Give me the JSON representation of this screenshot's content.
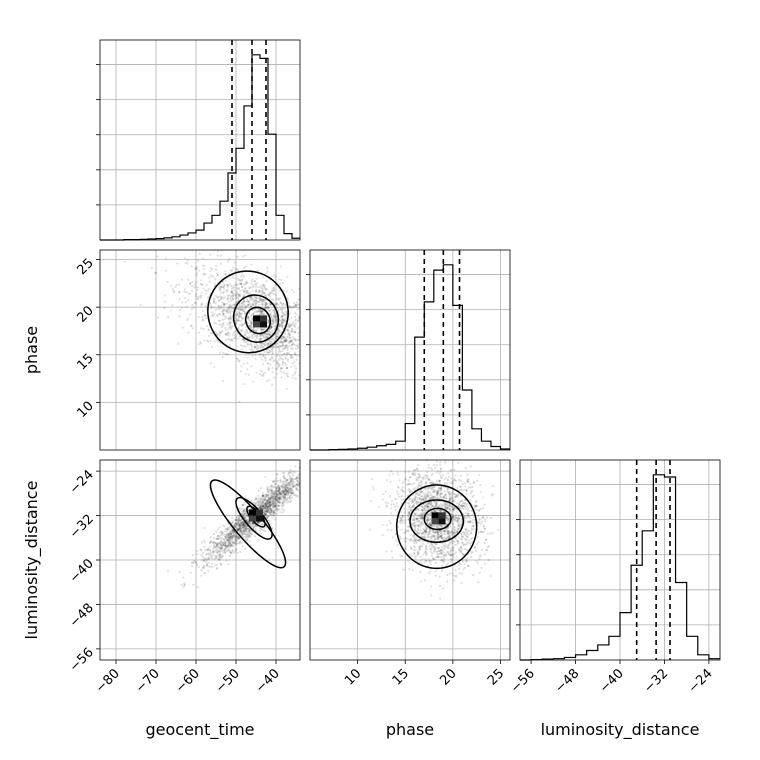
{
  "chart_data": {
    "type": "corner",
    "parameters": [
      "geocent_time",
      "phase",
      "luminosity_distance"
    ],
    "axis_labels": {
      "x": [
        "geocent_time",
        "phase",
        "luminosity_distance"
      ],
      "y": [
        "phase",
        "luminosity_distance"
      ]
    },
    "ranges": {
      "geocent_time": [
        -84,
        -34
      ],
      "phase": [
        5,
        26
      ],
      "luminosity_distance": [
        -58,
        -22
      ]
    },
    "ticks": {
      "geocent_time": [
        -80,
        -70,
        -60,
        -50,
        -40
      ],
      "phase": [
        10,
        15,
        20,
        25
      ],
      "phase_y": [
        10,
        15,
        20,
        25
      ],
      "luminosity_distance": [
        -56,
        -48,
        -40,
        -32,
        -24
      ]
    },
    "tick_labels": {
      "geocent_time": [
        "−80",
        "−70",
        "−60",
        "−50",
        "−40"
      ],
      "phase": [
        "10",
        "15",
        "20",
        "25"
      ],
      "luminosity_distance": [
        "−56",
        "−48",
        "−40",
        "−32",
        "−24"
      ]
    },
    "quantiles": {
      "geocent_time": [
        -51,
        -46,
        -42.5
      ],
      "phase": [
        17,
        19,
        20.7
      ],
      "luminosity_distance": [
        -37,
        -33.5,
        -31
      ]
    },
    "histograms": {
      "geocent_time": {
        "bins": [
          -84,
          -82,
          -80,
          -78,
          -76,
          -74,
          -72,
          -70,
          -68,
          -66,
          -64,
          -62,
          -60,
          -58,
          -56,
          -54,
          -52,
          -50,
          -48,
          -46,
          -44,
          -42,
          -40,
          -38,
          -36,
          -34
        ],
        "counts": [
          0,
          0,
          0,
          1,
          1,
          2,
          3,
          4,
          6,
          9,
          14,
          20,
          28,
          48,
          70,
          110,
          190,
          260,
          380,
          525,
          515,
          300,
          70,
          18,
          5
        ]
      },
      "phase": {
        "bins": [
          5,
          6,
          7,
          8,
          9,
          10,
          11,
          12,
          13,
          14,
          15,
          16,
          17,
          18,
          19,
          20,
          21,
          22,
          23,
          24,
          25,
          26
        ],
        "counts": [
          0,
          0,
          1,
          2,
          3,
          5,
          8,
          12,
          16,
          25,
          75,
          320,
          420,
          510,
          525,
          410,
          170,
          60,
          25,
          10,
          3
        ]
      },
      "luminosity_distance": {
        "bins": [
          -58,
          -56,
          -54,
          -52,
          -50,
          -48,
          -46,
          -44,
          -42,
          -40,
          -38,
          -36,
          -34,
          -32,
          -30,
          -28,
          -26,
          -24,
          -22
        ],
        "counts": [
          0,
          1,
          2,
          3,
          6,
          12,
          22,
          35,
          55,
          110,
          220,
          300,
          430,
          425,
          180,
          55,
          12,
          3
        ]
      }
    },
    "scatter_2d": [
      {
        "x": "geocent_time",
        "y": "phase",
        "center": [
          -44,
          18.5
        ],
        "contour_levels": [
          {
            "cx": -47,
            "cy": 19.5,
            "rx": 10,
            "ry": 4.3,
            "rot": -25
          },
          {
            "cx": -45,
            "cy": 18.8,
            "rx": 5.5,
            "ry": 2.5,
            "rot": -25
          },
          {
            "cx": -44.5,
            "cy": 18.6,
            "rx": 3,
            "ry": 1.4,
            "rot": -25
          }
        ]
      },
      {
        "x": "geocent_time",
        "y": "luminosity_distance",
        "center": [
          -45,
          -32
        ],
        "contour_levels": [
          {
            "cx": -47,
            "cy": -33.5,
            "rx": 14,
            "ry": 2.5,
            "rot": 50
          },
          {
            "cx": -45.5,
            "cy": -32.5,
            "rx": 6.5,
            "ry": 1.6,
            "rot": 50
          },
          {
            "cx": -45,
            "cy": -32.2,
            "rx": 3.2,
            "ry": 0.9,
            "rot": 50
          }
        ]
      },
      {
        "x": "phase",
        "y": "luminosity_distance",
        "center": [
          18.5,
          -32.5
        ],
        "contour_levels": [
          {
            "cx": 18.3,
            "cy": -34,
            "rx": 4.2,
            "ry": 7.5,
            "rot": 0
          },
          {
            "cx": 18.3,
            "cy": -33,
            "rx": 2.8,
            "ry": 3.8,
            "rot": 0
          },
          {
            "cx": 18.4,
            "cy": -32.6,
            "rx": 1.4,
            "ry": 1.9,
            "rot": 0
          }
        ]
      }
    ]
  }
}
